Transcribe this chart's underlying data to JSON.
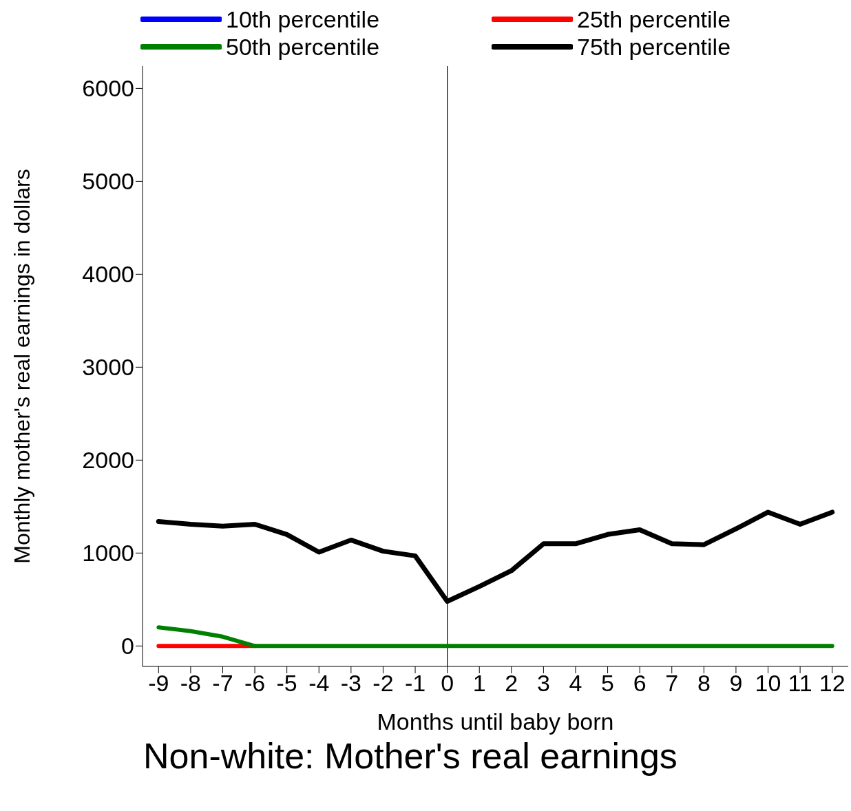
{
  "chart_data": {
    "type": "line",
    "title": "Non-white: Mother's real earnings",
    "xlabel": "Months until baby born",
    "ylabel": "Monthly mother's real earnings in dollars",
    "x": [
      -9,
      -8,
      -7,
      -6,
      -5,
      -4,
      -3,
      -2,
      -1,
      0,
      1,
      2,
      3,
      4,
      5,
      6,
      7,
      8,
      9,
      10,
      11,
      12
    ],
    "series": [
      {
        "name": "10th percentile",
        "color": "#0000ff",
        "values": [
          null,
          null,
          null,
          null,
          null,
          null,
          null,
          null,
          null,
          null,
          null,
          null,
          null,
          null,
          null,
          null,
          null,
          null,
          null,
          null,
          null,
          null
        ]
      },
      {
        "name": "25th percentile",
        "color": "#ff0000",
        "values": [
          0,
          0,
          0,
          0,
          null,
          null,
          null,
          null,
          null,
          null,
          null,
          null,
          null,
          null,
          null,
          null,
          null,
          null,
          null,
          null,
          null,
          null
        ]
      },
      {
        "name": "50th percentile",
        "color": "#008000",
        "values": [
          200,
          160,
          100,
          0,
          0,
          0,
          0,
          0,
          0,
          0,
          0,
          0,
          0,
          0,
          0,
          0,
          0,
          0,
          0,
          0,
          0,
          0
        ]
      },
      {
        "name": "75th percentile",
        "color": "#000000",
        "values": [
          1340,
          1310,
          1290,
          1310,
          1200,
          1010,
          1140,
          1020,
          970,
          480,
          640,
          810,
          1100,
          1100,
          1200,
          1250,
          1100,
          1090,
          1260,
          1440,
          1310,
          1440
        ]
      }
    ],
    "xlim": [
      -9.5,
      12.5
    ],
    "xticks": [
      -9,
      -8,
      -7,
      -6,
      -5,
      -4,
      -3,
      -2,
      -1,
      0,
      1,
      2,
      3,
      4,
      5,
      6,
      7,
      8,
      9,
      10,
      11,
      12
    ],
    "ylim": [
      -220,
      6240
    ],
    "yticks": [
      0,
      1000,
      2000,
      3000,
      4000,
      5000,
      6000
    ],
    "ref_lines": [
      {
        "axis": "x",
        "value": 0,
        "color": "#000000"
      }
    ],
    "grid": false,
    "legend": "top",
    "marker": "none",
    "line_style": "solid"
  }
}
